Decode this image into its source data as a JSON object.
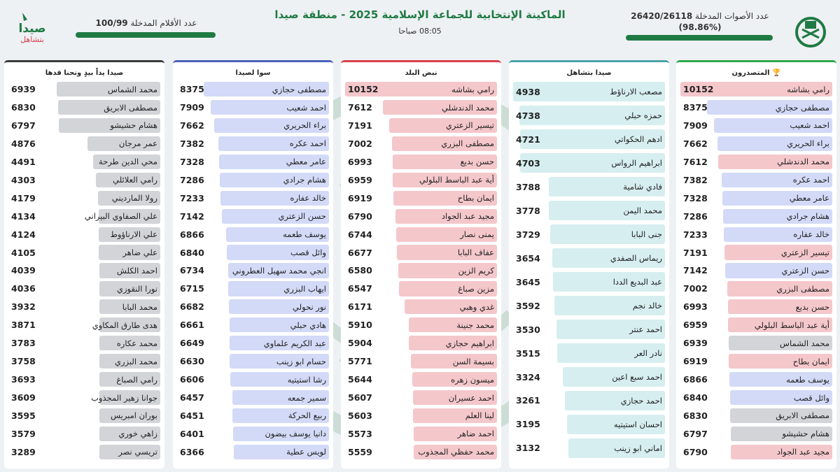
{
  "header": {
    "title": "الماكينة الإنتخابية للجماعة الإسلامية 2025 - منطقة صيدا",
    "time": "08:05 صباحا",
    "votes_label": "عدد الأصوات المدخلة",
    "votes_value": "26420/26118",
    "votes_percent": "(98.86%)",
    "votes_fraction": 0.9886,
    "pens_label": "عدد الأقلام المدخلة",
    "pens_value": "100/99",
    "pens_fraction": 0.99,
    "logo_left_text": "صيدا",
    "logo_left_subtext": "بتشاهل"
  },
  "colors": {
    "green": "#1f7a43",
    "red": "#f4c7cb",
    "blue": "#d3daf7",
    "gray": "#d3d4d8",
    "teal": "#d6eef0"
  },
  "columns": [
    {
      "key": "winners",
      "title": "المتصدرون",
      "border": "#2ea84e",
      "candidates": [
        {
          "name": "رامي بشاشه",
          "votes": 10152,
          "color": "red"
        },
        {
          "name": "مصطفى حجازي",
          "votes": 8375,
          "color": "blue"
        },
        {
          "name": "احمد شعيب",
          "votes": 7909,
          "color": "blue"
        },
        {
          "name": "براء الحريري",
          "votes": 7662,
          "color": "blue"
        },
        {
          "name": "محمد الدندشلي",
          "votes": 7612,
          "color": "red"
        },
        {
          "name": "احمد عكره",
          "votes": 7382,
          "color": "blue"
        },
        {
          "name": "عامر معطي",
          "votes": 7328,
          "color": "blue"
        },
        {
          "name": "هشام جرادي",
          "votes": 7286,
          "color": "blue"
        },
        {
          "name": "خالد عفاره",
          "votes": 7233,
          "color": "blue"
        },
        {
          "name": "تيسير الزعتري",
          "votes": 7191,
          "color": "red"
        },
        {
          "name": "حسن الزعتري",
          "votes": 7142,
          "color": "blue"
        },
        {
          "name": "مصطفى البزري",
          "votes": 7002,
          "color": "red"
        },
        {
          "name": "حسن بديع",
          "votes": 6993,
          "color": "red"
        },
        {
          "name": "أية عبد الباسط البلولي",
          "votes": 6959,
          "color": "red"
        },
        {
          "name": "محمد الشماس",
          "votes": 6939,
          "color": "gray"
        },
        {
          "name": "ايمان بطاح",
          "votes": 6919,
          "color": "red"
        },
        {
          "name": "يوسف طعمه",
          "votes": 6866,
          "color": "blue"
        },
        {
          "name": "وائل قصب",
          "votes": 6840,
          "color": "blue"
        },
        {
          "name": "مصطفى الابريق",
          "votes": 6830,
          "color": "gray"
        },
        {
          "name": "هشام حشيشو",
          "votes": 6797,
          "color": "gray"
        },
        {
          "name": "مجيد عبد الجواد",
          "votes": 6790,
          "color": "red"
        }
      ]
    },
    {
      "key": "saida",
      "title": "صيدا بتشاهل",
      "border": "#4aa3a8",
      "candidates": [
        {
          "name": "مصعب الارناؤط",
          "votes": 4938,
          "color": "teal"
        },
        {
          "name": "حمزه حبلي",
          "votes": 4738,
          "color": "teal"
        },
        {
          "name": "ادهم الحكواتي",
          "votes": 4721,
          "color": "teal"
        },
        {
          "name": "ابراهيم الرواس",
          "votes": 4703,
          "color": "teal"
        },
        {
          "name": "فادي شامية",
          "votes": 3788,
          "color": "teal"
        },
        {
          "name": "محمد اليمن",
          "votes": 3778,
          "color": "teal"
        },
        {
          "name": "جنى البابا",
          "votes": 3729,
          "color": "teal"
        },
        {
          "name": "ريماس الصفدي",
          "votes": 3654,
          "color": "teal"
        },
        {
          "name": "عبد البديع الددا",
          "votes": 3645,
          "color": "teal"
        },
        {
          "name": "خالد نجم",
          "votes": 3592,
          "color": "teal"
        },
        {
          "name": "احمد عنتر",
          "votes": 3530,
          "color": "teal"
        },
        {
          "name": "نادر العر",
          "votes": 3515,
          "color": "teal"
        },
        {
          "name": "احمد سبع اعين",
          "votes": 3324,
          "color": "teal"
        },
        {
          "name": "احمد حجازي",
          "votes": 3261,
          "color": "teal"
        },
        {
          "name": "احسان استيتيه",
          "votes": 3195,
          "color": "teal"
        },
        {
          "name": "اماني ابو زينب",
          "votes": 3132,
          "color": "teal"
        }
      ]
    },
    {
      "key": "nabd",
      "title": "نبض البلد",
      "border": "#d8424e",
      "candidates": [
        {
          "name": "رامي بشاشه",
          "votes": 10152,
          "color": "red"
        },
        {
          "name": "محمد الدندشلي",
          "votes": 7612,
          "color": "red"
        },
        {
          "name": "تيسير الزعتري",
          "votes": 7191,
          "color": "red"
        },
        {
          "name": "مصطفى البزري",
          "votes": 7002,
          "color": "red"
        },
        {
          "name": "حسن بديع",
          "votes": 6993,
          "color": "red"
        },
        {
          "name": "أية عبد الباسط البلولي",
          "votes": 6959,
          "color": "red"
        },
        {
          "name": "ايمان بطاح",
          "votes": 6919,
          "color": "red"
        },
        {
          "name": "مجيد عبد الجواد",
          "votes": 6790,
          "color": "red"
        },
        {
          "name": "يمنى نصار",
          "votes": 6744,
          "color": "red"
        },
        {
          "name": "عفاف البابا",
          "votes": 6677,
          "color": "red"
        },
        {
          "name": "كريم الزين",
          "votes": 6580,
          "color": "red"
        },
        {
          "name": "مزين صباغ",
          "votes": 6547,
          "color": "red"
        },
        {
          "name": "غدي وهبي",
          "votes": 6171,
          "color": "red"
        },
        {
          "name": "محمد جنينة",
          "votes": 5910,
          "color": "red"
        },
        {
          "name": "ابراهيم حجازي",
          "votes": 5904,
          "color": "red"
        },
        {
          "name": "بسيمة السن",
          "votes": 5771,
          "color": "red"
        },
        {
          "name": "ميسون زهره",
          "votes": 5644,
          "color": "red"
        },
        {
          "name": "احمد عسيران",
          "votes": 5607,
          "color": "red"
        },
        {
          "name": "لينا العلم",
          "votes": 5603,
          "color": "red"
        },
        {
          "name": "احمد ضاهر",
          "votes": 5573,
          "color": "red"
        },
        {
          "name": "محمد حفظي المجذوب",
          "votes": 5559,
          "color": "red"
        }
      ]
    },
    {
      "key": "sawa",
      "title": "سوا لصيدا",
      "border": "#4a62b8",
      "candidates": [
        {
          "name": "مصطفى حجازي",
          "votes": 8375,
          "color": "blue"
        },
        {
          "name": "احمد شعيب",
          "votes": 7909,
          "color": "blue"
        },
        {
          "name": "براء الحريري",
          "votes": 7662,
          "color": "blue"
        },
        {
          "name": "احمد عكره",
          "votes": 7382,
          "color": "blue"
        },
        {
          "name": "عامر معطي",
          "votes": 7328,
          "color": "blue"
        },
        {
          "name": "هشام جرادي",
          "votes": 7286,
          "color": "blue"
        },
        {
          "name": "خالد عفاره",
          "votes": 7233,
          "color": "blue"
        },
        {
          "name": "حسن الزعتري",
          "votes": 7142,
          "color": "blue"
        },
        {
          "name": "يوسف طعمه",
          "votes": 6866,
          "color": "blue"
        },
        {
          "name": "وائل قصب",
          "votes": 6840,
          "color": "blue"
        },
        {
          "name": "انجي محمد سهيل العطروني",
          "votes": 6734,
          "color": "blue"
        },
        {
          "name": "ايهاب البزري",
          "votes": 6715,
          "color": "blue"
        },
        {
          "name": "نور نحولي",
          "votes": 6682,
          "color": "blue"
        },
        {
          "name": "هادي حبلي",
          "votes": 6661,
          "color": "blue"
        },
        {
          "name": "عبد الكريم علماوي",
          "votes": 6649,
          "color": "blue"
        },
        {
          "name": "حسام ابو زينب",
          "votes": 6630,
          "color": "blue"
        },
        {
          "name": "رشا استيتيه",
          "votes": 6606,
          "color": "blue"
        },
        {
          "name": "سمير جمعه",
          "votes": 6457,
          "color": "blue"
        },
        {
          "name": "ربيع الحركة",
          "votes": 6451,
          "color": "blue"
        },
        {
          "name": "دانيا يوسف بيضون",
          "votes": 6401,
          "color": "blue"
        },
        {
          "name": "لويس عطية",
          "votes": 6366,
          "color": "blue"
        }
      ]
    },
    {
      "key": "yadan",
      "title": "صيدا يداً بيدٍ ونحنا قدها",
      "border": "#3a3a3a",
      "candidates": [
        {
          "name": "محمد الشماس",
          "votes": 6939,
          "color": "gray"
        },
        {
          "name": "مصطفى الابريق",
          "votes": 6830,
          "color": "gray"
        },
        {
          "name": "هشام حشيشو",
          "votes": 6797,
          "color": "gray"
        },
        {
          "name": "عمر مرجان",
          "votes": 4876,
          "color": "gray"
        },
        {
          "name": "محي الدين طرحة",
          "votes": 4491,
          "color": "gray"
        },
        {
          "name": "رامي العلائلي",
          "votes": 4303,
          "color": "gray"
        },
        {
          "name": "رولا المارديني",
          "votes": 4179,
          "color": "gray"
        },
        {
          "name": "علي الصفاوي البيراني",
          "votes": 4134,
          "color": "gray"
        },
        {
          "name": "علي الارناؤوط",
          "votes": 4124,
          "color": "gray"
        },
        {
          "name": "علي ضاهر",
          "votes": 4105,
          "color": "gray"
        },
        {
          "name": "احمد الكلش",
          "votes": 4039,
          "color": "gray"
        },
        {
          "name": "نورا النقوزي",
          "votes": 4036,
          "color": "gray"
        },
        {
          "name": "محمد البابا",
          "votes": 3932,
          "color": "gray"
        },
        {
          "name": "هدى طارق المكاوي",
          "votes": 3871,
          "color": "gray"
        },
        {
          "name": "محمد عكاره",
          "votes": 3783,
          "color": "gray"
        },
        {
          "name": "محمد البزري",
          "votes": 3758,
          "color": "gray"
        },
        {
          "name": "رامي الصباغ",
          "votes": 3693,
          "color": "gray"
        },
        {
          "name": "جوانا زهير المجذوب",
          "votes": 3609,
          "color": "gray"
        },
        {
          "name": "بوران امبريس",
          "votes": 3595,
          "color": "gray"
        },
        {
          "name": "زاهي خوري",
          "votes": 3579,
          "color": "gray"
        },
        {
          "name": "تريسي نصر",
          "votes": 3289,
          "color": "gray"
        }
      ]
    }
  ]
}
